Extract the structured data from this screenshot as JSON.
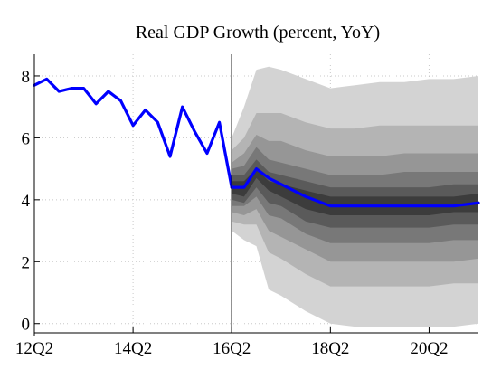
{
  "chart_data": {
    "type": "area",
    "title": "Real GDP Growth (percent, YoY)",
    "xlabel": "",
    "ylabel": "",
    "x_ticks": [
      "12Q2",
      "14Q2",
      "16Q2",
      "18Q2",
      "20Q2"
    ],
    "x_tick_positions": [
      0,
      8,
      16,
      24,
      32
    ],
    "y_ticks": [
      0,
      2,
      4,
      6,
      8
    ],
    "xlim": [
      0,
      36
    ],
    "ylim": [
      -0.3,
      8.7
    ],
    "grid": "dotted",
    "forecast_start_x": 16,
    "colors": {
      "history_line": "#0000ff",
      "forecast_line": "#0000ff",
      "vline": "#000000",
      "fan_bands": [
        "#d3d3d3",
        "#b4b4b4",
        "#969696",
        "#787878",
        "#5a5a5a",
        "#3c3c3c"
      ],
      "grid": "#c8c8c8"
    },
    "series": [
      {
        "kind": "history",
        "x": [
          0,
          1,
          2,
          3,
          4,
          5,
          6,
          7,
          8,
          9,
          10,
          11,
          12,
          13,
          14,
          15,
          16
        ],
        "values": [
          7.7,
          7.9,
          7.5,
          7.6,
          7.6,
          7.1,
          7.5,
          7.2,
          6.4,
          6.9,
          6.5,
          5.4,
          7.0,
          6.2,
          5.5,
          6.5,
          4.4
        ]
      },
      {
        "kind": "forecast",
        "x": [
          16,
          17,
          18,
          19,
          20,
          22,
          24,
          26,
          28,
          30,
          32,
          34,
          36
        ],
        "values": [
          4.4,
          4.4,
          5.0,
          4.7,
          4.5,
          4.1,
          3.8,
          3.8,
          3.8,
          3.8,
          3.8,
          3.8,
          3.9
        ]
      }
    ],
    "fan_x": [
      16,
      17,
      18,
      19,
      20,
      22,
      24,
      26,
      28,
      30,
      32,
      34,
      36
    ],
    "fan_bands": [
      {
        "lower": [
          3.0,
          2.7,
          2.5,
          1.1,
          0.9,
          0.4,
          0.0,
          -0.1,
          -0.1,
          -0.1,
          -0.1,
          -0.1,
          0.0
        ],
        "upper": [
          6.0,
          7.0,
          8.2,
          8.3,
          8.2,
          7.9,
          7.6,
          7.7,
          7.8,
          7.8,
          7.9,
          7.9,
          8.0
        ]
      },
      {
        "lower": [
          3.3,
          3.2,
          3.2,
          2.3,
          2.1,
          1.6,
          1.2,
          1.2,
          1.2,
          1.2,
          1.2,
          1.3,
          1.3
        ],
        "upper": [
          5.6,
          6.0,
          6.8,
          6.8,
          6.8,
          6.5,
          6.3,
          6.3,
          6.4,
          6.4,
          6.4,
          6.4,
          6.4
        ]
      },
      {
        "lower": [
          3.6,
          3.5,
          3.7,
          3.0,
          2.8,
          2.4,
          2.0,
          2.0,
          2.0,
          2.0,
          2.0,
          2.0,
          2.1
        ],
        "upper": [
          5.2,
          5.5,
          6.1,
          5.9,
          5.9,
          5.6,
          5.4,
          5.4,
          5.4,
          5.5,
          5.5,
          5.5,
          5.5
        ]
      },
      {
        "lower": [
          3.8,
          3.8,
          4.1,
          3.5,
          3.4,
          2.9,
          2.6,
          2.6,
          2.6,
          2.6,
          2.6,
          2.7,
          2.7
        ],
        "upper": [
          5.0,
          5.1,
          5.7,
          5.3,
          5.2,
          5.0,
          4.8,
          4.8,
          4.8,
          4.9,
          4.9,
          4.9,
          4.9
        ]
      },
      {
        "lower": [
          4.0,
          3.9,
          4.4,
          3.9,
          3.8,
          3.3,
          3.1,
          3.1,
          3.1,
          3.1,
          3.1,
          3.2,
          3.2
        ],
        "upper": [
          4.8,
          4.8,
          5.3,
          4.9,
          4.8,
          4.6,
          4.4,
          4.4,
          4.4,
          4.4,
          4.4,
          4.5,
          4.5
        ]
      },
      {
        "lower": [
          4.2,
          4.1,
          4.7,
          4.3,
          4.1,
          3.7,
          3.5,
          3.5,
          3.5,
          3.5,
          3.5,
          3.6,
          3.6
        ],
        "upper": [
          4.6,
          4.6,
          5.0,
          4.6,
          4.5,
          4.3,
          4.1,
          4.1,
          4.1,
          4.1,
          4.1,
          4.1,
          4.2
        ]
      }
    ]
  }
}
